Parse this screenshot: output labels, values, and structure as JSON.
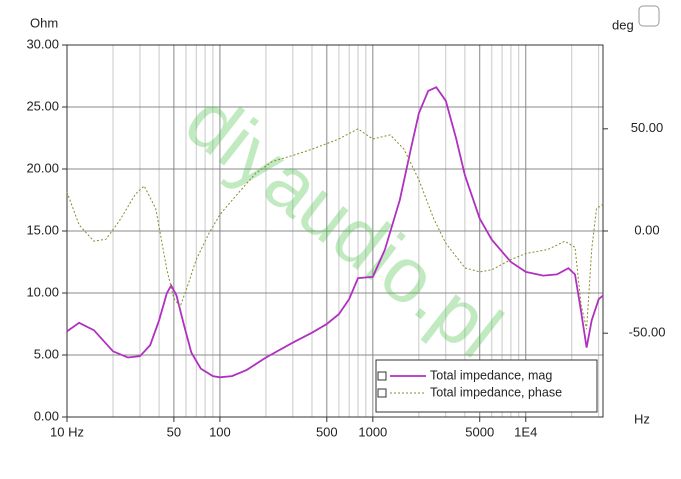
{
  "chart_data": {
    "type": "line",
    "x_label": "Hz",
    "y_label": "Ohm",
    "y2_label": "deg",
    "watermark": "diyaudio.pl",
    "xscale": "log",
    "grid": true,
    "xlim": [
      10,
      32000
    ],
    "xticks": [
      {
        "value": 10,
        "label": "10 Hz"
      },
      50,
      100,
      500,
      1000,
      5000,
      {
        "value": 10000,
        "label": "1E4"
      }
    ],
    "xminorticks": [
      20,
      30,
      40,
      60,
      70,
      80,
      90,
      200,
      300,
      400,
      600,
      700,
      800,
      900,
      2000,
      3000,
      4000,
      6000,
      7000,
      8000,
      9000,
      20000,
      30000
    ],
    "ylim": [
      0,
      30
    ],
    "yticks": [
      {
        "value": 0,
        "label": "0.00"
      },
      {
        "value": 5,
        "label": "5.00"
      },
      {
        "value": 10,
        "label": "10.00"
      },
      {
        "value": 15,
        "label": "15.00"
      },
      {
        "value": 20,
        "label": "20.00"
      },
      {
        "value": 25,
        "label": "25.00"
      },
      {
        "value": 30,
        "label": "30.00"
      }
    ],
    "y2lim": [
      -91,
      91
    ],
    "y2ticks": [
      {
        "value": -50,
        "label": "-50.00"
      },
      {
        "value": 0,
        "label": "0.00"
      },
      {
        "value": 50,
        "label": "50.00"
      }
    ],
    "legend": "bottom-right",
    "series": [
      {
        "name": "Total impedance, mag",
        "color": "#b030c0",
        "axis": "y",
        "x": [
          10,
          12,
          15,
          20,
          25,
          30,
          35,
          40,
          45,
          48,
          52,
          58,
          65,
          75,
          90,
          100,
          120,
          150,
          200,
          300,
          400,
          500,
          600,
          700,
          800,
          1000,
          1200,
          1500,
          1800,
          2000,
          2300,
          2600,
          3000,
          3500,
          4000,
          5000,
          6000,
          8000,
          10000,
          13000,
          16000,
          19000,
          21000,
          23000,
          25000,
          27000,
          30000,
          32000
        ],
        "values": [
          6.9,
          7.6,
          7.0,
          5.3,
          4.8,
          4.9,
          5.8,
          7.8,
          10.0,
          10.6,
          9.8,
          7.5,
          5.2,
          3.9,
          3.3,
          3.2,
          3.3,
          3.8,
          4.8,
          6.0,
          6.8,
          7.5,
          8.3,
          9.5,
          11.2,
          11.3,
          13.5,
          17.5,
          22,
          24.5,
          26.3,
          26.6,
          25.5,
          22.5,
          19.5,
          16.0,
          14.3,
          12.5,
          11.7,
          11.4,
          11.5,
          12.0,
          11.5,
          8.5,
          5.6,
          7.8,
          9.5,
          9.8
        ]
      },
      {
        "name": "Total impedance, phase",
        "color": "#8a8a30",
        "axis": "y2",
        "x": [
          10,
          12,
          15,
          18,
          22,
          28,
          32,
          38,
          45,
          50,
          55,
          62,
          70,
          85,
          100,
          130,
          170,
          220,
          300,
          400,
          600,
          800,
          1000,
          1300,
          1600,
          2000,
          2500,
          3000,
          4000,
          5000,
          6000,
          8000,
          10000,
          14000,
          18000,
          21000,
          23000,
          25000,
          27000,
          29000,
          32000
        ],
        "values": [
          19,
          3,
          -5,
          -4,
          5,
          18,
          22,
          11,
          -19,
          -33,
          -37,
          -26,
          -14,
          -1,
          8,
          18,
          28,
          34,
          37,
          40,
          45,
          50,
          45,
          47,
          40,
          25,
          6,
          -6,
          -18,
          -20,
          -19,
          -14,
          -11,
          -9,
          -5,
          -8,
          -36,
          -48,
          -9,
          11,
          13
        ]
      }
    ]
  }
}
